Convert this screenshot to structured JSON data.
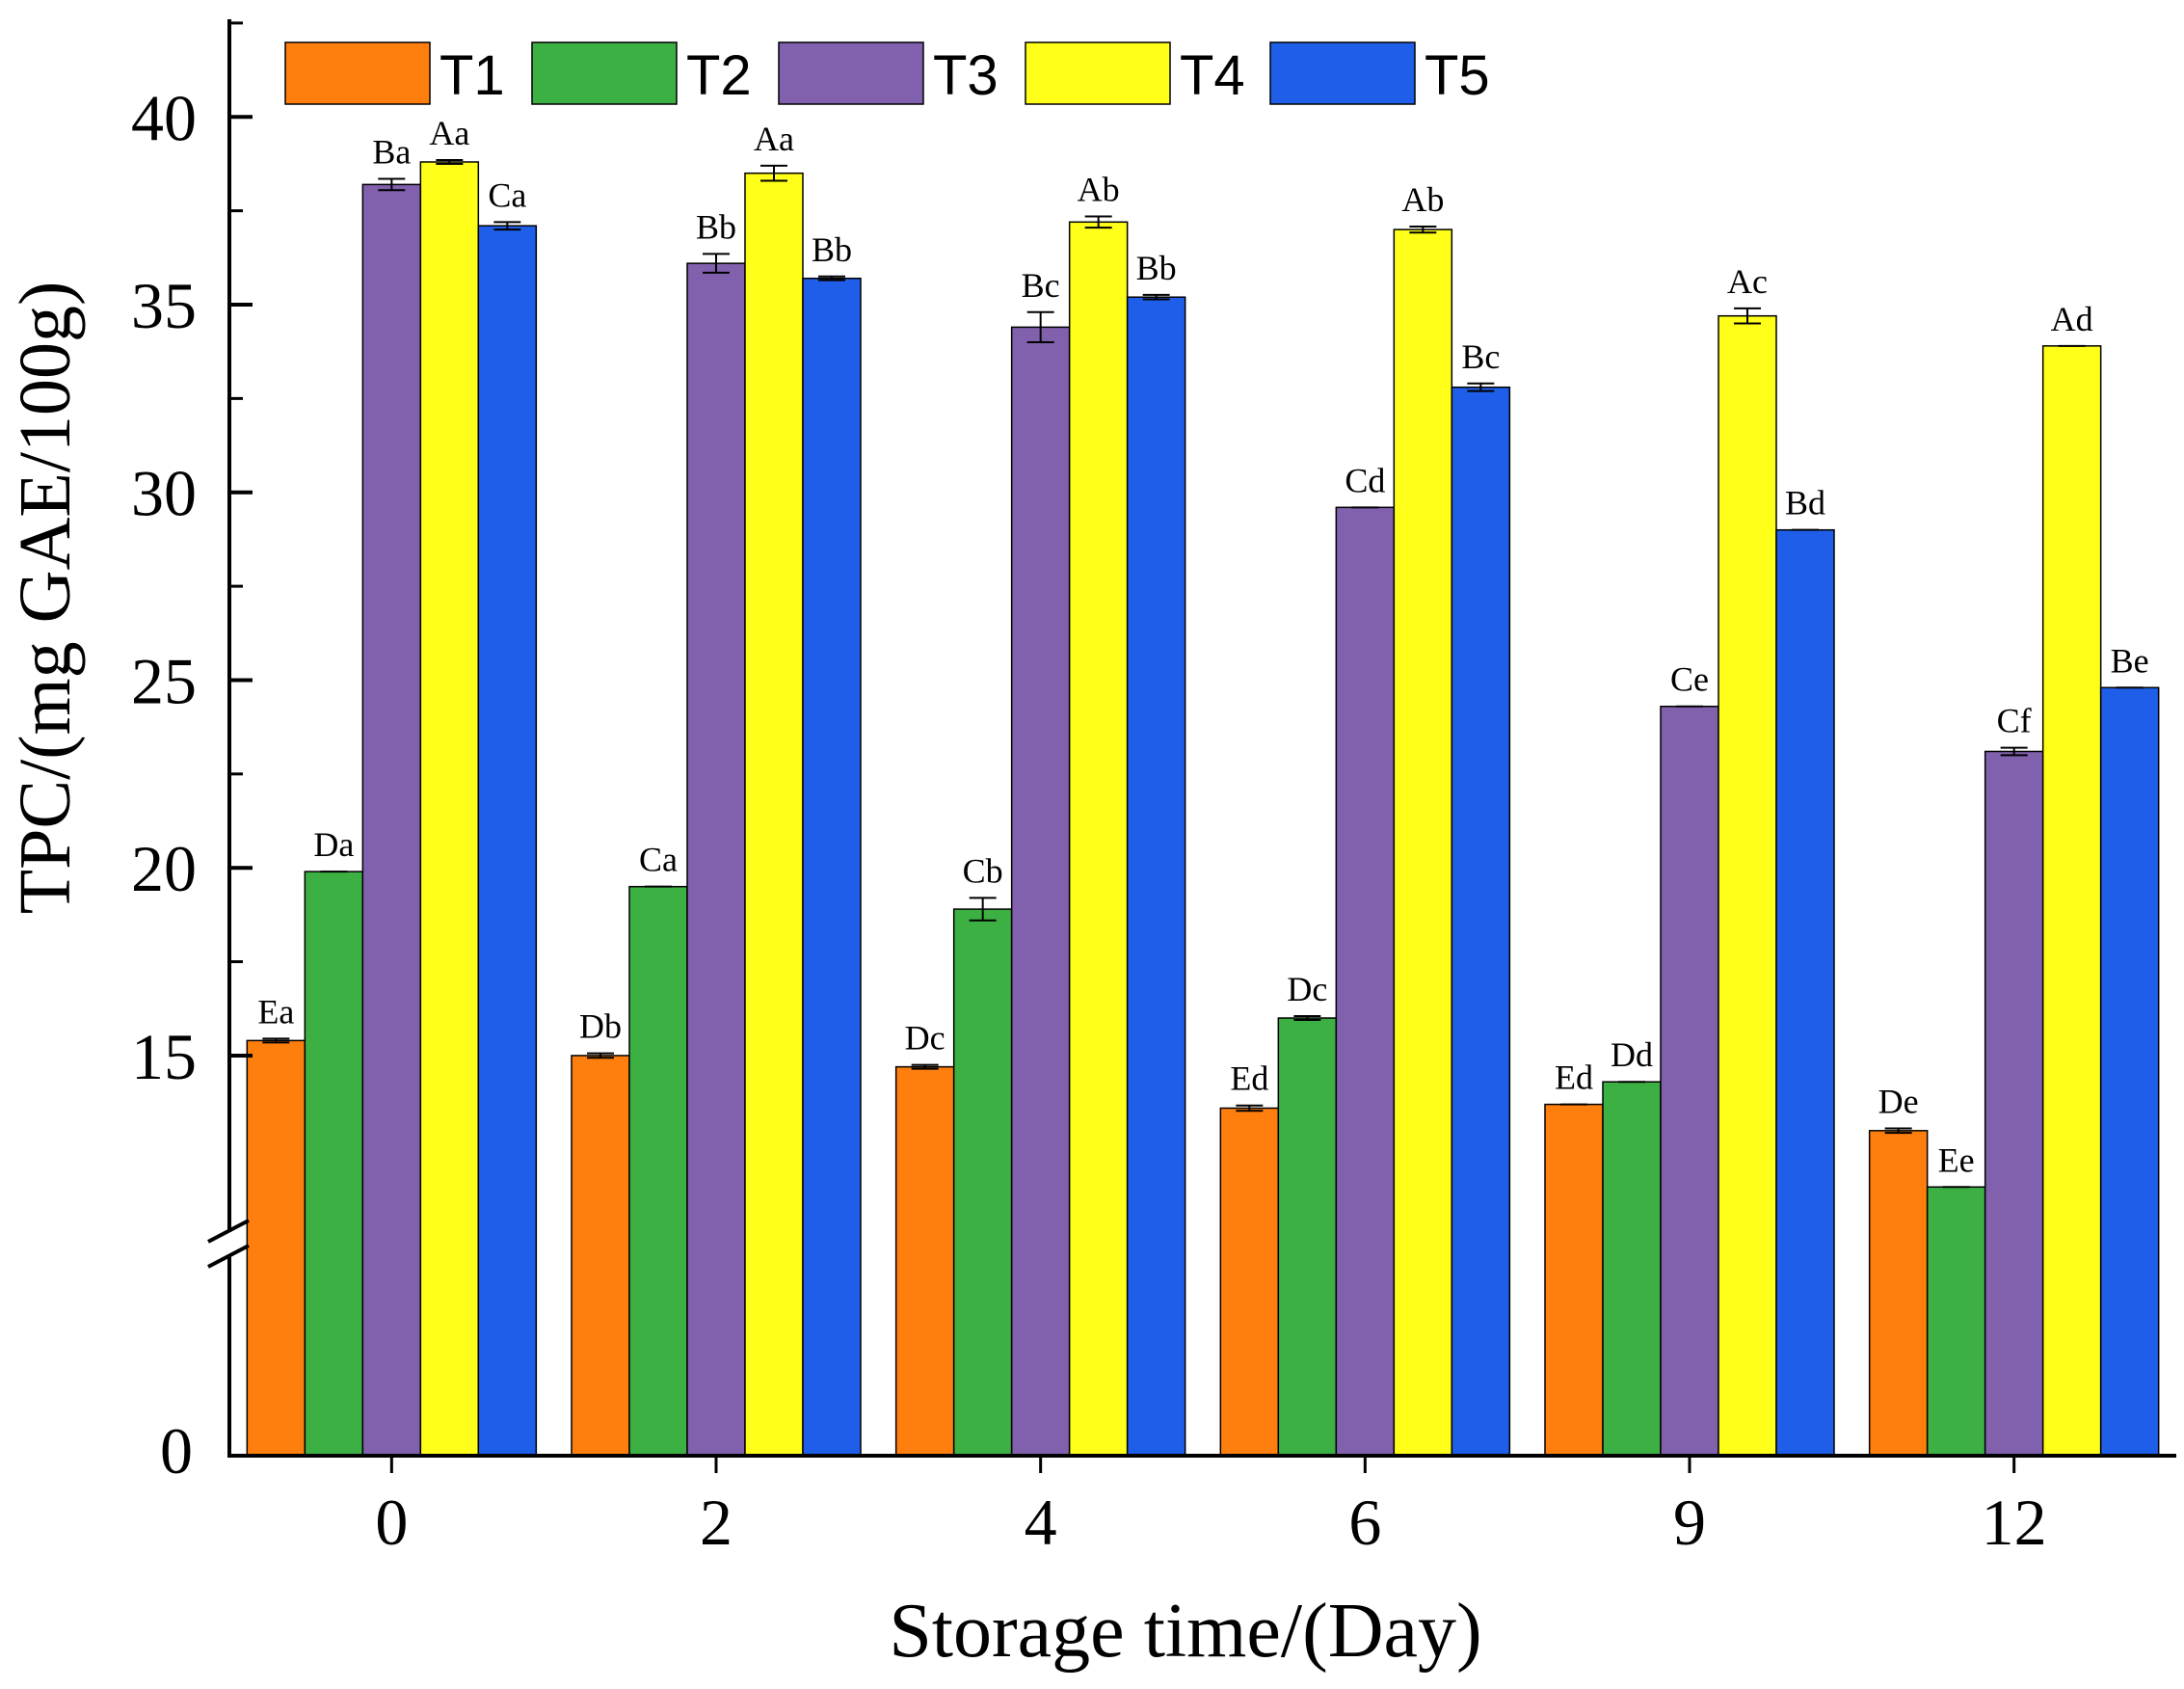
{
  "chart_data": {
    "type": "bar",
    "ylabel": "TPC/(mg GAE/100g)",
    "xlabel": "Storage time/(Day)",
    "categories": [
      "0",
      "2",
      "4",
      "6",
      "9",
      "12"
    ],
    "y_ticks": [
      "15",
      "20",
      "25",
      "30",
      "35",
      "40"
    ],
    "y_zero_label": "0",
    "axis_break": {
      "lower_range": [
        0,
        6
      ],
      "upper_range": [
        10.3,
        42.6
      ]
    },
    "series": [
      {
        "name": "T1",
        "color": "#ff7f0e",
        "values": [
          15.4,
          15.0,
          14.7,
          13.6,
          13.7,
          13.0
        ],
        "errors": [
          0.05,
          0.06,
          0.05,
          0.07,
          0.0,
          0.06
        ],
        "labels": [
          "Ea",
          "Db",
          "Dc",
          "Ed",
          "Ed",
          "De"
        ]
      },
      {
        "name": "T2",
        "color": "#3cb043",
        "values": [
          19.9,
          19.5,
          18.9,
          16.0,
          14.3,
          11.5
        ],
        "errors": [
          0.0,
          0.0,
          0.3,
          0.05,
          0.0,
          0.0
        ],
        "labels": [
          "Da",
          "Ca",
          "Cb",
          "Dc",
          "Dd",
          "Ee"
        ]
      },
      {
        "name": "T3",
        "color": "#8160ad",
        "values": [
          38.2,
          36.1,
          34.4,
          29.6,
          24.3,
          23.1
        ],
        "errors": [
          0.15,
          0.25,
          0.4,
          0.0,
          0.0,
          0.1
        ],
        "labels": [
          "Ba",
          "Bb",
          "Bc",
          "Cd",
          "Ce",
          "Cf"
        ]
      },
      {
        "name": "T4",
        "color": "#ffff1a",
        "values": [
          38.8,
          38.5,
          37.2,
          37.0,
          34.7,
          33.9
        ],
        "errors": [
          0.05,
          0.2,
          0.15,
          0.08,
          0.2,
          0.0
        ],
        "labels": [
          "Aa",
          "Aa",
          "Ab",
          "Ab",
          "Ac",
          "Ad"
        ]
      },
      {
        "name": "T5",
        "color": "#1f5ee8",
        "values": [
          37.1,
          35.7,
          35.2,
          32.8,
          29.0,
          24.8
        ],
        "errors": [
          0.1,
          0.05,
          0.06,
          0.1,
          0.0,
          0.0
        ],
        "labels": [
          "Ca",
          "Bb",
          "Bb",
          "Bc",
          "Bd",
          "Be"
        ]
      }
    ],
    "legend": "top-left",
    "grid": false
  }
}
